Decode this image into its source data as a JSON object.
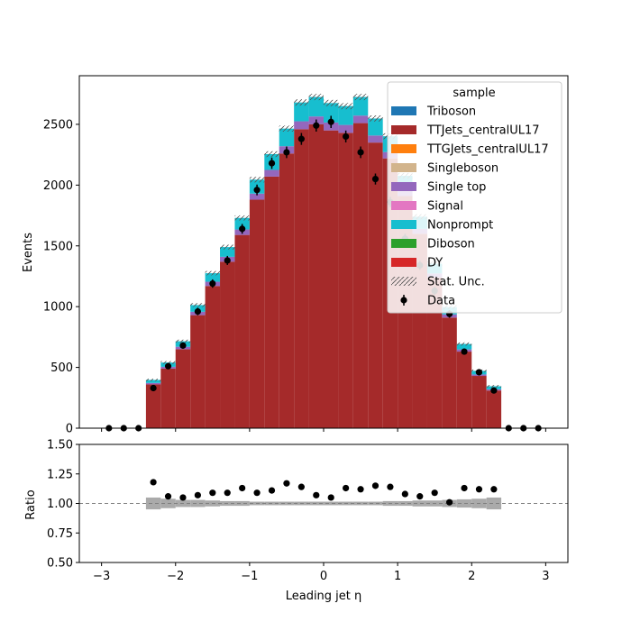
{
  "chart_data": [
    {
      "type": "bar",
      "stacked": true,
      "xlabel": "Leading jet  η",
      "ylabel": "Events",
      "xlim": [
        -3.3,
        3.3
      ],
      "ylim": [
        0,
        2900
      ],
      "xticks": [
        -3,
        -2,
        -1,
        0,
        1,
        2,
        3
      ],
      "xtick_labels": [
        "−3",
        "−2",
        "−1",
        "0",
        "1",
        "2",
        "3"
      ],
      "yticks": [
        0,
        500,
        1000,
        1500,
        2000,
        2500
      ],
      "ytick_labels": [
        "0",
        "500",
        "1000",
        "1500",
        "2000",
        "2500"
      ],
      "grid": false,
      "legend_title": "sample",
      "legend_position": "top-right",
      "bin_edges": [
        -2.4,
        -2.2,
        -2.0,
        -1.8,
        -1.6,
        -1.4,
        -1.2,
        -1.0,
        -0.8,
        -0.6,
        -0.4,
        -0.2,
        0.0,
        0.2,
        0.4,
        0.6,
        0.8,
        1.0,
        1.2,
        1.4,
        1.6,
        1.8,
        2.0,
        2.2,
        2.4
      ],
      "series": [
        {
          "name": "Triboson",
          "color": "#1f77b4",
          "values": [
            0,
            0,
            0,
            0,
            0,
            0,
            0,
            0,
            0,
            0,
            0,
            0,
            0,
            0,
            0,
            0,
            0,
            0,
            0,
            0,
            0,
            0,
            0,
            0
          ]
        },
        {
          "name": "TTJets_centralUL17",
          "color": "#a52a2a",
          "values": [
            360,
            490,
            650,
            930,
            1170,
            1370,
            1590,
            1880,
            2070,
            2260,
            2460,
            2500,
            2450,
            2430,
            2510,
            2350,
            2220,
            1910,
            1600,
            1240,
            910,
            630,
            430,
            310
          ]
        },
        {
          "name": "TTGJets_centralUL17",
          "color": "#ff7f0e",
          "values": [
            0,
            0,
            0,
            0,
            0,
            0,
            0,
            0,
            0,
            0,
            0,
            0,
            0,
            0,
            0,
            0,
            0,
            0,
            0,
            0,
            0,
            0,
            0,
            0
          ]
        },
        {
          "name": "Singleboson",
          "color": "#d2b48c",
          "values": [
            0,
            0,
            0,
            0,
            0,
            0,
            0,
            0,
            0,
            0,
            0,
            0,
            0,
            0,
            0,
            0,
            0,
            0,
            0,
            0,
            0,
            0,
            0,
            0
          ]
        },
        {
          "name": "Single top",
          "color": "#9467bd",
          "values": [
            12,
            15,
            20,
            28,
            35,
            40,
            45,
            50,
            55,
            60,
            65,
            65,
            65,
            65,
            62,
            58,
            52,
            47,
            40,
            33,
            26,
            18,
            12,
            10
          ]
        },
        {
          "name": "Signal",
          "color": "#e377c2",
          "values": [
            0,
            0,
            0,
            0,
            0,
            0,
            0,
            0,
            0,
            0,
            0,
            0,
            0,
            0,
            0,
            0,
            0,
            0,
            0,
            0,
            0,
            0,
            0,
            0
          ]
        },
        {
          "name": "Nonprompt",
          "color": "#17becf",
          "values": [
            25,
            35,
            45,
            55,
            70,
            80,
            95,
            115,
            130,
            145,
            155,
            160,
            160,
            155,
            153,
            140,
            130,
            120,
            100,
            80,
            60,
            45,
            30,
            25
          ]
        },
        {
          "name": "Diboson",
          "color": "#2ca02c",
          "values": [
            0,
            0,
            0,
            0,
            0,
            0,
            0,
            0,
            0,
            0,
            0,
            0,
            0,
            0,
            0,
            0,
            0,
            0,
            0,
            0,
            0,
            0,
            0,
            0
          ]
        },
        {
          "name": "DY",
          "color": "#d62728",
          "values": [
            0,
            0,
            0,
            0,
            0,
            0,
            0,
            0,
            0,
            0,
            0,
            0,
            0,
            0,
            0,
            0,
            0,
            0,
            0,
            0,
            0,
            0,
            0,
            0
          ]
        }
      ],
      "stat_unc_label": "Stat. Unc.",
      "data_label": "Data",
      "data": {
        "x": [
          -2.9,
          -2.7,
          -2.5,
          -2.3,
          -2.1,
          -1.9,
          -1.7,
          -1.5,
          -1.3,
          -1.1,
          -0.9,
          -0.7,
          -0.5,
          -0.3,
          -0.1,
          0.1,
          0.3,
          0.5,
          0.7,
          0.9,
          1.1,
          1.3,
          1.5,
          1.7,
          1.9,
          2.1,
          2.3,
          2.5,
          2.7,
          2.9
        ],
        "y": [
          0,
          0,
          0,
          330,
          510,
          680,
          960,
          1190,
          1380,
          1640,
          1960,
          2180,
          2270,
          2380,
          2490,
          2520,
          2400,
          2270,
          2050,
          1860,
          1560,
          1340,
          1130,
          940,
          630,
          460,
          310,
          0,
          0,
          0
        ]
      }
    },
    {
      "type": "scatter",
      "xlabel": "Leading jet  η",
      "ylabel": "Ratio",
      "xlim": [
        -3.3,
        3.3
      ],
      "ylim": [
        0.5,
        1.5
      ],
      "yticks": [
        0.5,
        0.75,
        1.0,
        1.25,
        1.5
      ],
      "ytick_labels": [
        "0.50",
        "0.75",
        "1.00",
        "1.25",
        "1.50"
      ],
      "reference_line": 1.0,
      "x": [
        -2.3,
        -2.1,
        -1.9,
        -1.7,
        -1.5,
        -1.3,
        -1.1,
        -0.9,
        -0.7,
        -0.5,
        -0.3,
        -0.1,
        0.1,
        0.3,
        0.5,
        0.7,
        0.9,
        1.1,
        1.3,
        1.5,
        1.7,
        1.9,
        2.1,
        2.3
      ],
      "y": [
        1.18,
        1.06,
        1.05,
        1.07,
        1.09,
        1.09,
        1.13,
        1.09,
        1.11,
        1.17,
        1.14,
        1.07,
        1.05,
        1.13,
        1.12,
        1.15,
        1.14,
        1.08,
        1.06,
        1.09,
        1.01,
        1.13,
        1.12,
        1.12
      ],
      "unc_band": [
        0.05,
        0.04,
        0.03,
        0.03,
        0.025,
        0.02,
        0.02,
        0.015,
        0.015,
        0.015,
        0.015,
        0.015,
        0.015,
        0.015,
        0.015,
        0.015,
        0.02,
        0.02,
        0.025,
        0.025,
        0.03,
        0.035,
        0.04,
        0.05
      ]
    }
  ]
}
